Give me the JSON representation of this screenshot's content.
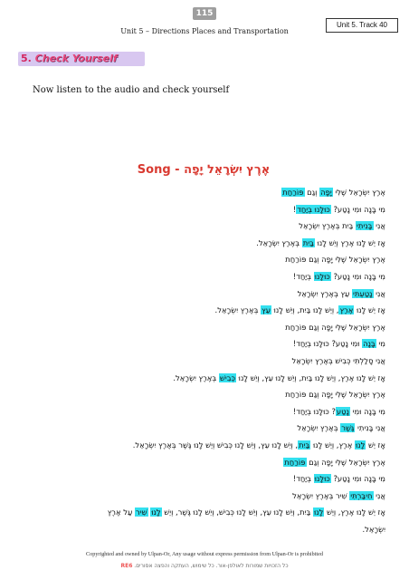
{
  "page_number": "115",
  "header": "Unit 5 – Directions Places and Transportation",
  "track_label": "Unit 5. Track 40",
  "section": {
    "number": "5.",
    "title": "Check Yourself"
  },
  "instruction": "Now listen to the audio and check yourself",
  "song": {
    "hebrew_title": "אֶרֶץ יִשְׂרָאֵל יָפָה",
    "label": "Song -"
  },
  "lyrics": [
    [
      {
        "t": "אֶרֶץ יִשְׂרָאֵל שֶׁלִּי "
      },
      {
        "t": "יָפָה",
        "h": true
      },
      {
        "t": " וְגַם "
      },
      {
        "t": "פּוֹרַחַת",
        "h": true
      }
    ],
    [
      {
        "t": "מִי בָּנָה וּמִי נָטַע? "
      },
      {
        "t": "כּוּלָּנוּ בְּיַחַד",
        "h": true
      },
      {
        "t": "!"
      }
    ],
    [
      {
        "t": "אֲנִי "
      },
      {
        "t": "בָּנִיתִי",
        "h": true
      },
      {
        "t": " בַּיִת בְּאֶרֶץ יִשְׂרָאֵל"
      }
    ],
    [
      {
        "t": "אָז יֵשׁ לָנוּ אֶרֶץ וְיֵשׁ לָנוּ "
      },
      {
        "t": "בַּיִת",
        "h": true
      },
      {
        "t": " בְּאֶרֶץ יִשְׂרָאֵל."
      }
    ],
    [
      {
        "t": "אֶרֶץ יִשְׂרָאֵל שֶׁלִּי יָפָה וְגַם פּוֹרַחַת"
      }
    ],
    [
      {
        "t": "מִי בָּנָה וּמִי נָטַע? "
      },
      {
        "t": "כּוּלָּנוּ",
        "h": true
      },
      {
        "t": " בְּיַחַד!"
      }
    ],
    [
      {
        "t": "אֲנִי "
      },
      {
        "t": "נָטַעְתִּי",
        "h": true
      },
      {
        "t": " עֵץ בְּאֶרֶץ יִשְׂרָאֵל"
      }
    ],
    [
      {
        "t": "אָז יֵשׁ לָנוּ "
      },
      {
        "t": "אֶרֶץ",
        "h": true
      },
      {
        "t": ", וְיֵשׁ לָנוּ בַּיִת, וְיֵשׁ לָנוּ "
      },
      {
        "t": "עֵץ",
        "h": true
      },
      {
        "t": " בְּאֶרֶץ יִשְׂרָאֵל."
      }
    ],
    [
      {
        "t": "אֶרֶץ יִשְׂרָאֵל שֶׁלִּי יָפָה וְגַם פּוֹרַחַת"
      }
    ],
    [
      {
        "t": "מִי "
      },
      {
        "t": "בָּנָה",
        "h": true
      },
      {
        "t": " וּמִי נָטַע? כּוּלָּנוּ בְּיַחַד!"
      }
    ],
    [
      {
        "t": "אֲנִי סָלַלְתִּי כְּבִישׁ בְּאֶרֶץ יִשְׂרָאֵל"
      }
    ],
    [
      {
        "t": "אָז יֵשׁ לָנוּ אֶרֶץ, וְיֵשׁ לָנוּ בַּיִת, וְיֵשׁ לָנוּ עֵץ, וְיֵשׁ לָנוּ "
      },
      {
        "t": "כְּבִישׁ",
        "h": true
      },
      {
        "t": " בְּאֶרֶץ יִשְׂרָאֵל."
      }
    ],
    [
      {
        "t": "אֶרֶץ יִשְׂרָאֵל שֶׁלִּי יָפָה וְגַם פּוֹרַחַת"
      }
    ],
    [
      {
        "t": "מִי בָּנָה וּמִי "
      },
      {
        "t": "נָטַע",
        "h": true
      },
      {
        "t": "? כּוּלָּנוּ בְּיַחַד!"
      }
    ],
    [
      {
        "t": "אֲנִי בָּנִיתִי "
      },
      {
        "t": "גֶּשֶׁר",
        "h": true
      },
      {
        "t": " בְּאֶרֶץ יִשְׂרָאֵל"
      }
    ],
    [
      {
        "t": "אָז יֵשׁ "
      },
      {
        "t": "לָנוּ",
        "h": true
      },
      {
        "t": " אֶרֶץ, וְיֵשׁ לָנוּ "
      },
      {
        "t": "בַּיִת",
        "h": true
      },
      {
        "t": ", וְיֵשׁ לָנוּ עֵץ, וְיֵשׁ לָנוּ כְּבִישׁ וְיֵשׁ לָנוּ גֶּשֶׁר בְּאֶרֶץ יִשְׂרָאֵל."
      }
    ],
    [
      {
        "t": "אֶרֶץ יִשְׂרָאֵל שֶׁלִּי יָפָה וְגַם "
      },
      {
        "t": "פּוֹרַחַת",
        "h": true
      }
    ],
    [
      {
        "t": "מִי בָּנָה וּמִי נָטַע? "
      },
      {
        "t": "כּוּלָּנוּ",
        "h": true
      },
      {
        "t": " בְּיַחַד!"
      }
    ],
    [
      {
        "t": "אֲנִי "
      },
      {
        "t": "חִיבַּרְתִּי",
        "h": true
      },
      {
        "t": " שִׁיר בְּאֶרֶץ יִשְׂרָאֵל"
      }
    ],
    [
      {
        "t": "אָז יֵשׁ לָנוּ אֶרֶץ, וְיֵשׁ "
      },
      {
        "t": "לָנוּ",
        "h": true
      },
      {
        "t": " בַּיִת, וְיֵשׁ לָנוּ עֵץ, וְיֵשׁ לָנוּ כְּבִישׁ, וְיֵשׁ לָנוּ גֶּשֶׁר, וְיֵשׁ "
      },
      {
        "t": "לָנוּ",
        "h": true
      },
      {
        "t": " "
      },
      {
        "t": "שִׁיר",
        "h": true
      },
      {
        "t": " עַל אֶרֶץ"
      }
    ],
    [
      {
        "t": "יִשְׂרָאֵל."
      }
    ]
  ],
  "footer": "Copyrighted and owned by Ulpan-Or, Any usage without express permission from Ulpan-Or is prohibited",
  "footer_hebrew": "כל הזכויות שמורות לאולפן-אור. כל שימוש, העתקה והפצה אסורים.",
  "footer_code": "RE6",
  "colors": {
    "highlight": "#33e0ef",
    "song_title": "#d93a31",
    "banner_bg": "#d8c7f0",
    "banner_text": "#e9457a"
  }
}
